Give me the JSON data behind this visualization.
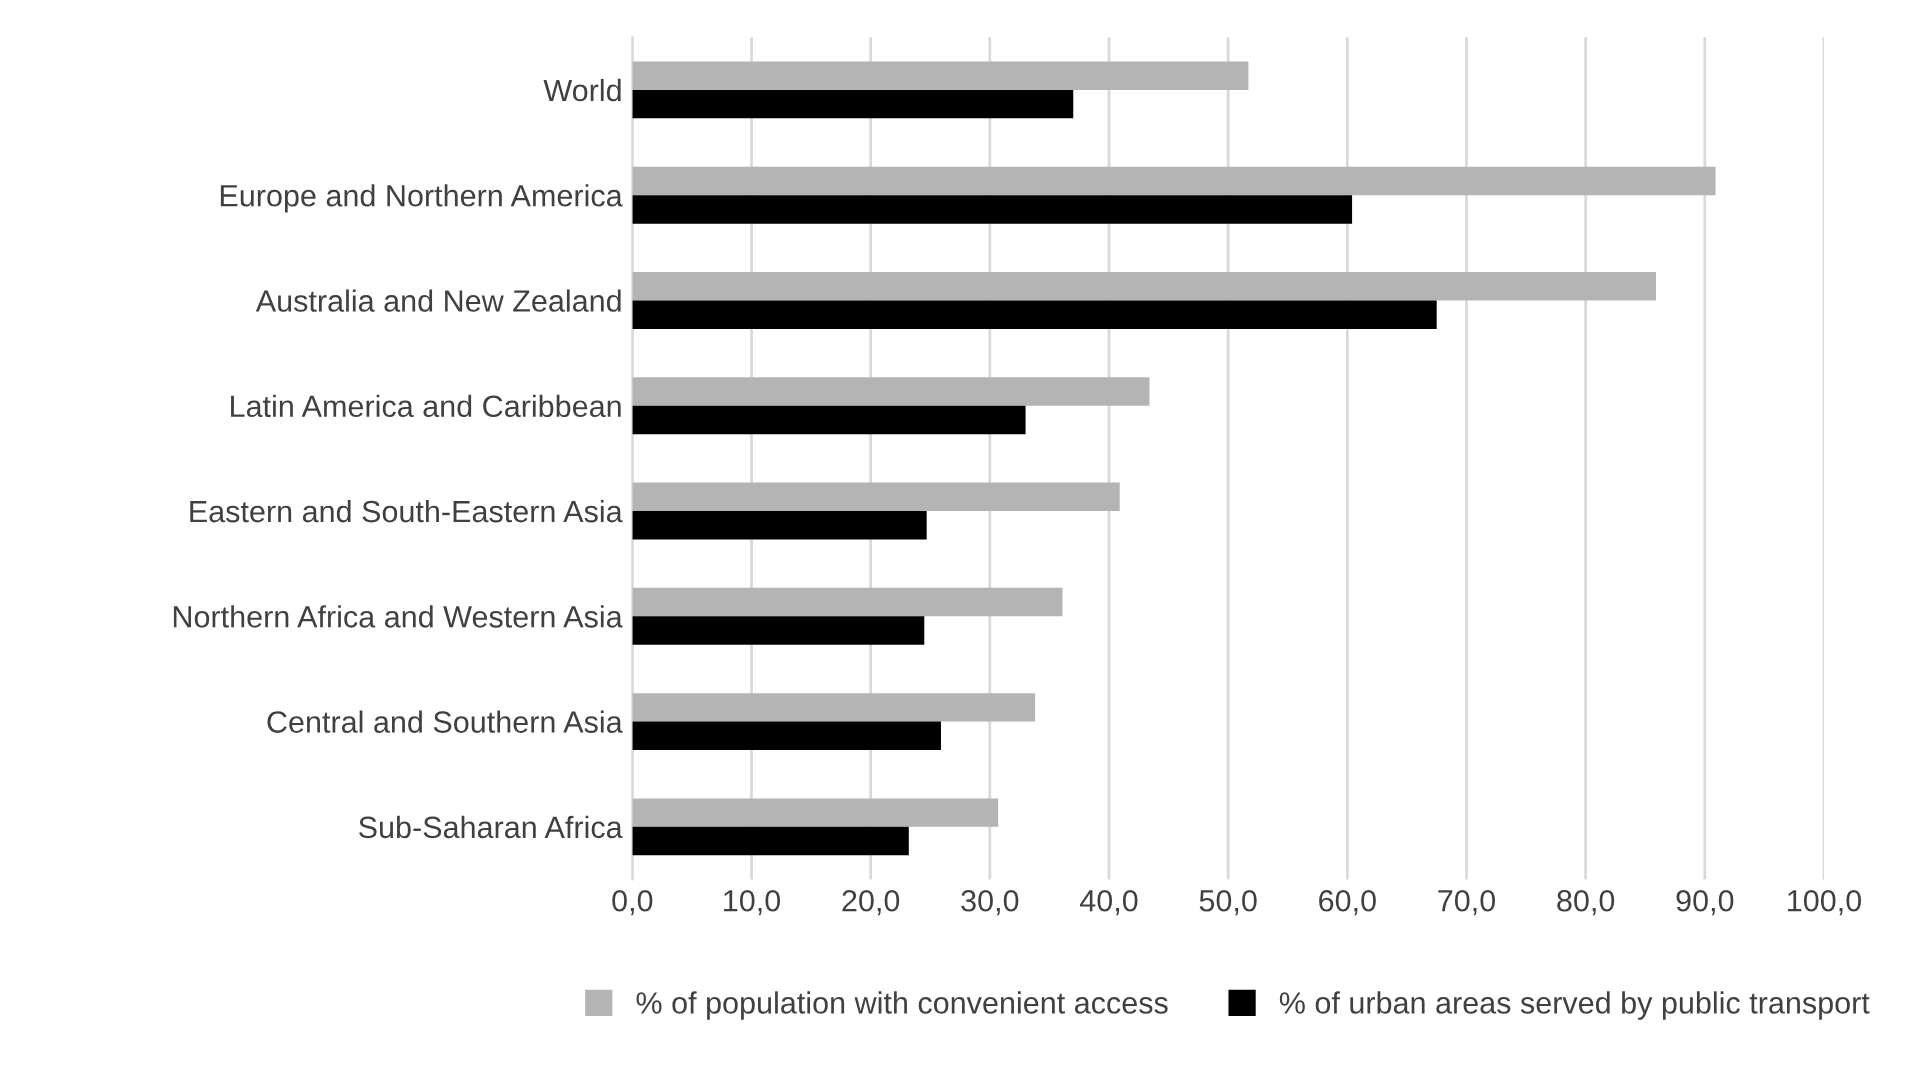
{
  "chart_data": {
    "type": "bar",
    "orientation": "horizontal",
    "categories": [
      "World",
      "Europe and Northern America",
      "Australia and New Zealand",
      "Latin America and Caribbean",
      "Eastern and South-Eastern Asia",
      "Northern Africa and Western Asia",
      "Central and Southern Asia",
      "Sub-Saharan Africa"
    ],
    "series": [
      {
        "name": "% of population with convenient access",
        "color": "#b4b4b4",
        "values": [
          51.7,
          90.9,
          85.9,
          43.4,
          40.9,
          36.1,
          33.8,
          30.7
        ]
      },
      {
        "name": "% of urban areas served by public transport",
        "color": "#000000",
        "values": [
          37.0,
          60.4,
          67.5,
          33.0,
          24.7,
          24.5,
          25.9,
          23.2
        ]
      }
    ],
    "xlim": [
      0,
      100
    ],
    "xticks": [
      {
        "value": 0,
        "label": "0,0"
      },
      {
        "value": 10,
        "label": "10,0"
      },
      {
        "value": 20,
        "label": "20,0"
      },
      {
        "value": 30,
        "label": "30,0"
      },
      {
        "value": 40,
        "label": "40,0"
      },
      {
        "value": 50,
        "label": "50,0"
      },
      {
        "value": 60,
        "label": "60,0"
      },
      {
        "value": 70,
        "label": "70,0"
      },
      {
        "value": 80,
        "label": "80,0"
      },
      {
        "value": 90,
        "label": "90,0"
      },
      {
        "value": 100,
        "label": "100,0"
      }
    ],
    "grid": "x",
    "legend": "bottom"
  }
}
